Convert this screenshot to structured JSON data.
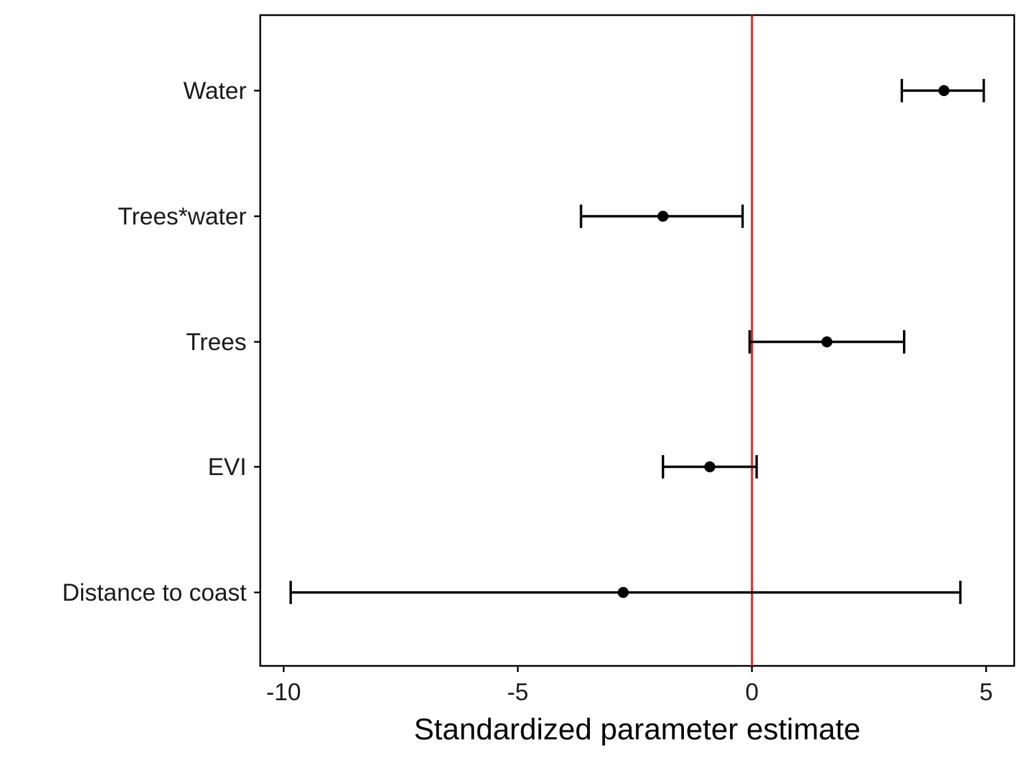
{
  "chart_data": {
    "type": "scatter",
    "subtype": "coefficient-plot-with-error-bars",
    "title": "",
    "xlabel": "Standardized parameter estimate",
    "ylabel": "",
    "xlim": [
      -10.5,
      5.6
    ],
    "xticks": [
      -10,
      -5,
      0,
      5
    ],
    "xtick_labels": [
      "-10",
      "-5",
      "0",
      "5"
    ],
    "categories": [
      "Water",
      "Trees*water",
      "Trees",
      "EVI",
      "Distance to coast"
    ],
    "series": [
      {
        "estimates": [
          4.1,
          -1.9,
          1.6,
          -0.9,
          -2.75
        ],
        "lower": [
          3.2,
          -3.65,
          -0.05,
          -1.9,
          -9.85
        ],
        "upper": [
          4.95,
          -0.2,
          3.25,
          0.1,
          4.45
        ]
      }
    ],
    "reference_line": {
      "x": 0,
      "color": "#e41a1c"
    },
    "grid": false,
    "legend": "none",
    "colors": {
      "points": "#000000",
      "error_bars": "#000000",
      "axis": "#000000",
      "reference": "#e41a1c"
    }
  }
}
